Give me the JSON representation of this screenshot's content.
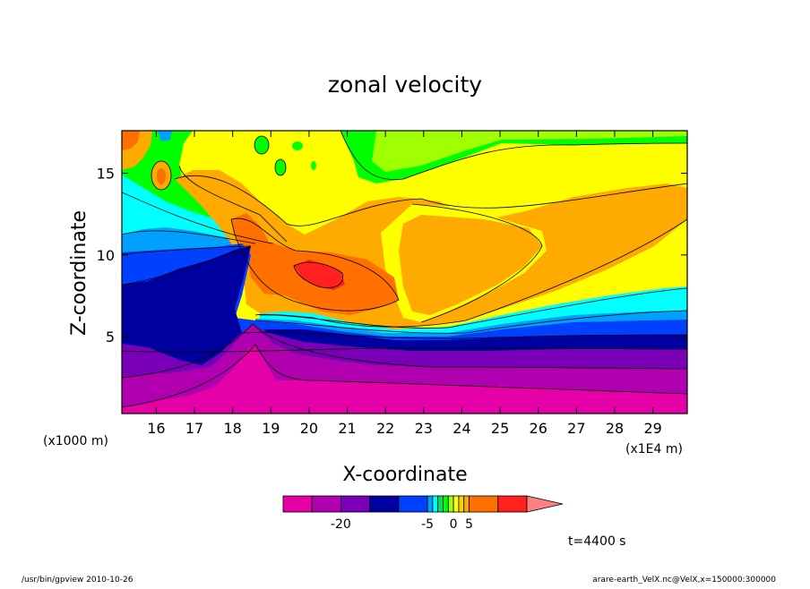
{
  "chart_data": {
    "type": "heatmap",
    "title": "zonal velocity",
    "xlabel": "X-coordinate",
    "ylabel": "Z-coordinate",
    "x_unit": "(x1E4 m)",
    "y_unit": "(x1000 m)",
    "xlim": [
      15.1,
      29.9
    ],
    "ylim": [
      0.3,
      17.6
    ],
    "x_ticks": [
      "16",
      "17",
      "18",
      "19",
      "20",
      "21",
      "22",
      "23",
      "24",
      "25",
      "26",
      "27",
      "28",
      "29"
    ],
    "y_ticks": [
      "5",
      "10",
      "15"
    ],
    "time_label": "t=4400 s",
    "colorbar": {
      "bins": [
        {
          "upper": -25,
          "color": "#e600a8"
        },
        {
          "upper": -20,
          "color": "#b000b0"
        },
        {
          "upper": -15,
          "color": "#7a00b8"
        },
        {
          "upper": -10,
          "color": "#0000a0"
        },
        {
          "upper": -5,
          "color": "#0040ff"
        },
        {
          "upper": -4,
          "color": "#00a0ff"
        },
        {
          "upper": -3,
          "color": "#00ffff"
        },
        {
          "upper": -2,
          "color": "#00e060"
        },
        {
          "upper": -1,
          "color": "#00ff00"
        },
        {
          "upper": 0,
          "color": "#a0ff00"
        },
        {
          "upper": 1,
          "color": "#ffff00"
        },
        {
          "upper": 2,
          "color": "#ffd000"
        },
        {
          "upper": 5,
          "color": "#ffaa00"
        },
        {
          "upper": 10,
          "color": "#ff7000"
        },
        {
          "upper": 15,
          "color": "#ff2020"
        },
        {
          "upper": null,
          "color": "#ff8080"
        }
      ],
      "tick_labels": [
        "-20",
        "-5",
        "0",
        "5"
      ]
    }
  },
  "footer": {
    "left": "/usr/bin/gpview  2010-10-26",
    "right": "arare-earth_VelX.nc@VelX,x=150000:300000"
  }
}
